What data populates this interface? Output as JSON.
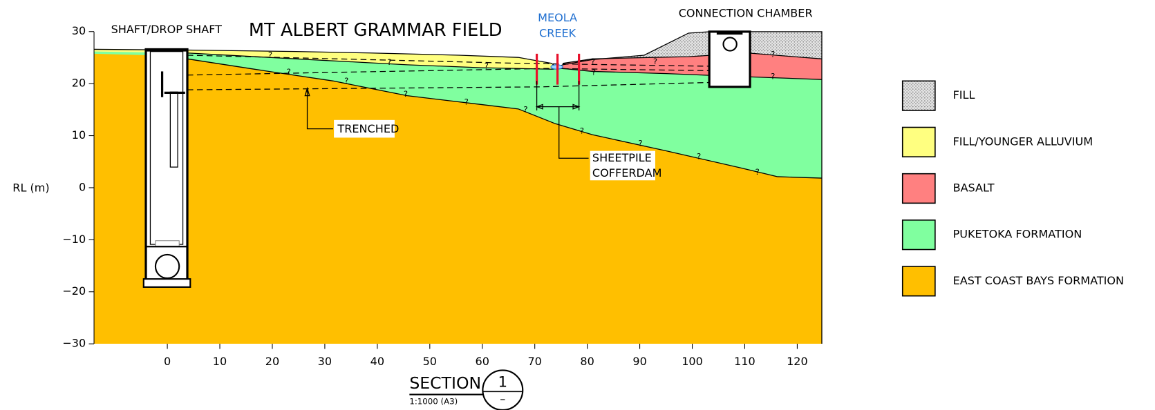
{
  "title": "MT ALBERT GRAMMAR FIELD",
  "labels": {
    "shaft": "SHAFT/DROP SHAFT",
    "creek": [
      "MEOLA",
      "CREEK"
    ],
    "chamber": "CONNECTION CHAMBER",
    "trenched": "TRENCHED",
    "sheetpile": [
      "SHEETPILE",
      "COFFERDAM"
    ],
    "query": "?"
  },
  "axis": {
    "ylabel": "RL (m)",
    "xticks": [
      0,
      10,
      20,
      30,
      40,
      50,
      60,
      70,
      80,
      90,
      100,
      110,
      120
    ],
    "yticks": [
      30,
      20,
      10,
      0,
      {
        "value": -10,
        "label": "−10"
      },
      {
        "value": -20,
        "label": "−20"
      },
      {
        "value": -30,
        "label": "−30"
      }
    ]
  },
  "legend": [
    {
      "label": "FILL",
      "color": "#d4d4d4"
    },
    {
      "label": "FILL/YOUNGER ALLUVIUM",
      "color": "#ffff80"
    },
    {
      "label": "BASALT",
      "color": "#ff8080"
    },
    {
      "label": "PUKETOKA FORMATION",
      "color": "#80ff9f"
    },
    {
      "label": "EAST COAST BAYS FORMATION",
      "color": "#ffbf00"
    }
  ],
  "section": {
    "title": "SECTION",
    "scale": "1:1000 (A3)",
    "number": "1",
    "sheet": "–"
  }
}
